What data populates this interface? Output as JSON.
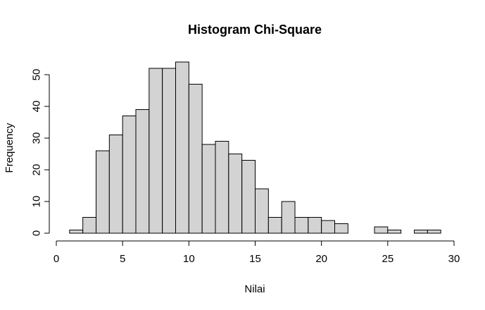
{
  "chart_data": {
    "type": "bar",
    "title": "Histogram Chi-Square",
    "xlabel": "Nilai",
    "ylabel": "Frequency",
    "xlim": [
      0,
      30
    ],
    "ylim": [
      0,
      54
    ],
    "x_ticks": [
      0,
      5,
      10,
      15,
      20,
      25,
      30
    ],
    "y_ticks": [
      0,
      10,
      20,
      30,
      40,
      50
    ],
    "bin_width": 1,
    "bins": [
      {
        "start": 1,
        "end": 2,
        "count": 1
      },
      {
        "start": 2,
        "end": 3,
        "count": 5
      },
      {
        "start": 3,
        "end": 4,
        "count": 26
      },
      {
        "start": 4,
        "end": 5,
        "count": 31
      },
      {
        "start": 5,
        "end": 6,
        "count": 37
      },
      {
        "start": 6,
        "end": 7,
        "count": 39
      },
      {
        "start": 7,
        "end": 8,
        "count": 52
      },
      {
        "start": 8,
        "end": 9,
        "count": 52
      },
      {
        "start": 9,
        "end": 10,
        "count": 54
      },
      {
        "start": 10,
        "end": 11,
        "count": 47
      },
      {
        "start": 11,
        "end": 12,
        "count": 28
      },
      {
        "start": 12,
        "end": 13,
        "count": 29
      },
      {
        "start": 13,
        "end": 14,
        "count": 25
      },
      {
        "start": 14,
        "end": 15,
        "count": 23
      },
      {
        "start": 15,
        "end": 16,
        "count": 14
      },
      {
        "start": 16,
        "end": 17,
        "count": 5
      },
      {
        "start": 17,
        "end": 18,
        "count": 10
      },
      {
        "start": 18,
        "end": 19,
        "count": 5
      },
      {
        "start": 19,
        "end": 20,
        "count": 5
      },
      {
        "start": 20,
        "end": 21,
        "count": 4
      },
      {
        "start": 21,
        "end": 22,
        "count": 3
      },
      {
        "start": 22,
        "end": 23,
        "count": 0
      },
      {
        "start": 23,
        "end": 24,
        "count": 0
      },
      {
        "start": 24,
        "end": 25,
        "count": 2
      },
      {
        "start": 25,
        "end": 26,
        "count": 1
      },
      {
        "start": 26,
        "end": 27,
        "count": 0
      },
      {
        "start": 27,
        "end": 28,
        "count": 1
      },
      {
        "start": 28,
        "end": 29,
        "count": 1
      }
    ],
    "grid": false,
    "legend": "none",
    "bar_color": "#d3d3d3"
  }
}
